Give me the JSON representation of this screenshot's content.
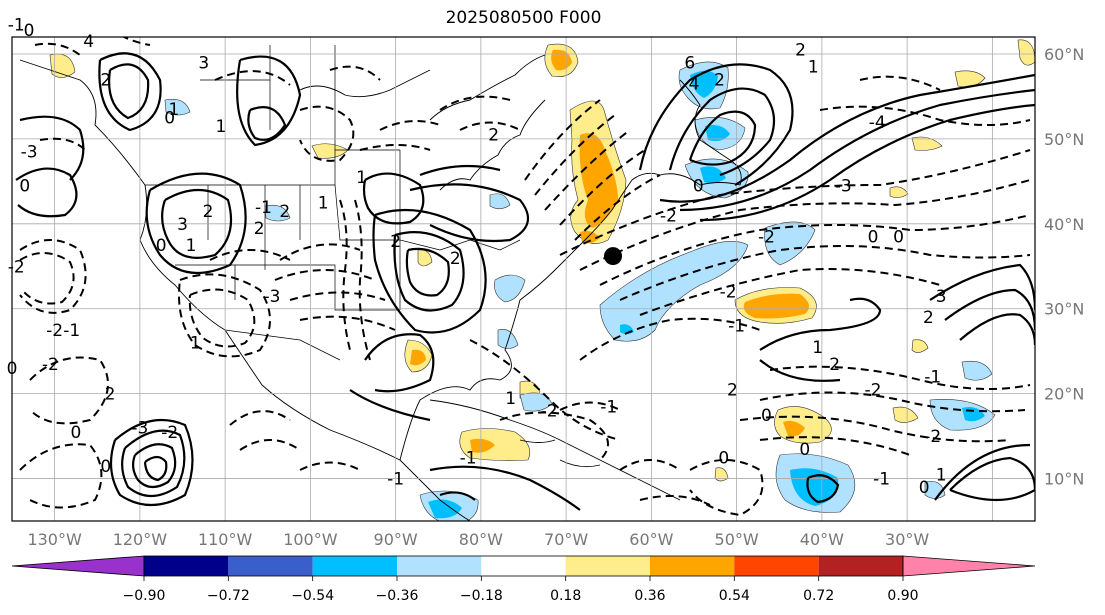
{
  "title": "2025080500 F000",
  "lat_labels": [
    {
      "lat": 60,
      "text": "60°N"
    },
    {
      "lat": 50,
      "text": "50°N"
    },
    {
      "lat": 40,
      "text": "40°N"
    },
    {
      "lat": 30,
      "text": "30°N"
    },
    {
      "lat": 20,
      "text": "20°N"
    },
    {
      "lat": 10,
      "text": "10°N"
    }
  ],
  "lon_labels": [
    {
      "lon": -130,
      "text": "130°W"
    },
    {
      "lon": -120,
      "text": "120°W"
    },
    {
      "lon": -110,
      "text": "110°W"
    },
    {
      "lon": -100,
      "text": "100°W"
    },
    {
      "lon": -90,
      "text": "90°W"
    },
    {
      "lon": -80,
      "text": "80°W"
    },
    {
      "lon": -70,
      "text": "70°W"
    },
    {
      "lon": -60,
      "text": "60°W"
    },
    {
      "lon": -50,
      "text": "50°W"
    },
    {
      "lon": -40,
      "text": "40°W"
    },
    {
      "lon": -30,
      "text": "30°W"
    }
  ],
  "colorbar": {
    "colors": [
      "#9932CC",
      "#00008B",
      "#3A5FCD",
      "#00BFFF",
      "#B0E2FF",
      "#FFFFFF",
      "#FFEC8B",
      "#FFA500",
      "#FF4500",
      "#B22222",
      "#FF82AB"
    ],
    "ticks": [
      "−0.90",
      "−0.72",
      "−0.54",
      "−0.36",
      "−0.18",
      "0.18",
      "0.36",
      "0.54",
      "0.72",
      "0.90"
    ]
  },
  "marker": {
    "lat": 36.2,
    "lon": -64.5,
    "color": "#000000"
  },
  "contour_labels": [
    {
      "text": "-1",
      "lat": 63.5,
      "lon": -134.5
    },
    {
      "text": "0",
      "lat": 62.8,
      "lon": -133
    },
    {
      "text": "4",
      "lat": 61.5,
      "lon": -126
    },
    {
      "text": "3",
      "lat": 59,
      "lon": -112.5
    },
    {
      "text": "2",
      "lat": 57,
      "lon": -124
    },
    {
      "text": "1",
      "lat": 53.5,
      "lon": -116
    },
    {
      "text": "0",
      "lat": 52.5,
      "lon": -116.5
    },
    {
      "text": "-3",
      "lat": 48.5,
      "lon": -133
    },
    {
      "text": "0",
      "lat": 44.5,
      "lon": -133.5
    },
    {
      "text": "1",
      "lat": 51.5,
      "lon": -110.5
    },
    {
      "text": "2",
      "lat": 41.5,
      "lon": -112
    },
    {
      "text": "2",
      "lat": 41.5,
      "lon": -103
    },
    {
      "text": "3",
      "lat": 40,
      "lon": -115
    },
    {
      "text": "1",
      "lat": 37.5,
      "lon": -114
    },
    {
      "text": "0",
      "lat": 37.5,
      "lon": -117.5
    },
    {
      "text": "1",
      "lat": 42.5,
      "lon": -98.5
    },
    {
      "text": "2",
      "lat": 39.5,
      "lon": -106
    },
    {
      "text": "-1",
      "lat": 42,
      "lon": -105.5
    },
    {
      "text": "-2",
      "lat": 35,
      "lon": -134.5
    },
    {
      "text": "-3",
      "lat": 31.5,
      "lon": -104.5
    },
    {
      "text": "2",
      "lat": 38,
      "lon": -90
    },
    {
      "text": "2",
      "lat": 36,
      "lon": -83
    },
    {
      "text": "2",
      "lat": 50.5,
      "lon": -78.5
    },
    {
      "text": "1",
      "lat": 45.5,
      "lon": -94
    },
    {
      "text": "-2",
      "lat": 27.5,
      "lon": -130
    },
    {
      "text": "-1",
      "lat": 27.5,
      "lon": -128
    },
    {
      "text": "-2",
      "lat": 23.5,
      "lon": -130.5
    },
    {
      "text": "0",
      "lat": 23,
      "lon": -135
    },
    {
      "text": "1",
      "lat": 26,
      "lon": -113.5
    },
    {
      "text": "1",
      "lat": 19.5,
      "lon": -76.5
    },
    {
      "text": "-2",
      "lat": 18,
      "lon": -72
    },
    {
      "text": "-1",
      "lat": 18.5,
      "lon": -65
    },
    {
      "text": "2",
      "lat": 20,
      "lon": -123.5
    },
    {
      "text": "-3",
      "lat": 16,
      "lon": -120
    },
    {
      "text": "-2",
      "lat": 15.5,
      "lon": -116.5
    },
    {
      "text": "0",
      "lat": 15.5,
      "lon": -127.5
    },
    {
      "text": "0",
      "lat": 11.5,
      "lon": -124
    },
    {
      "text": "-1",
      "lat": 12.5,
      "lon": -81.5
    },
    {
      "text": "-1",
      "lat": 10,
      "lon": -90
    },
    {
      "text": "6",
      "lat": 59,
      "lon": -55.5
    },
    {
      "text": "4",
      "lat": 56.5,
      "lon": -55
    },
    {
      "text": "2",
      "lat": 57,
      "lon": -52
    },
    {
      "text": "0",
      "lat": 44.5,
      "lon": -54.5
    },
    {
      "text": "-2",
      "lat": 38.5,
      "lon": -46.5
    },
    {
      "text": "-3",
      "lat": 44.5,
      "lon": -37.5
    },
    {
      "text": "-2",
      "lat": 32,
      "lon": -51
    },
    {
      "text": "-1",
      "lat": 28,
      "lon": -50
    },
    {
      "text": "1",
      "lat": 25.5,
      "lon": -40.5
    },
    {
      "text": "2",
      "lat": 23.5,
      "lon": -38.5
    },
    {
      "text": "-2",
      "lat": 20.5,
      "lon": -34
    },
    {
      "text": "2",
      "lat": 20.5,
      "lon": -50.5
    },
    {
      "text": "0",
      "lat": 17.5,
      "lon": -46.5
    },
    {
      "text": "0",
      "lat": 12.5,
      "lon": -51.5
    },
    {
      "text": "0",
      "lat": 13.5,
      "lon": -42
    },
    {
      "text": "-1",
      "lat": 10,
      "lon": -33
    },
    {
      "text": "1",
      "lat": 10.5,
      "lon": -26
    },
    {
      "text": "0",
      "lat": 9,
      "lon": -28
    },
    {
      "text": "-2",
      "lat": 15,
      "lon": -27
    },
    {
      "text": "-1",
      "lat": 22,
      "lon": -27
    },
    {
      "text": "0",
      "lat": 38.5,
      "lon": -34
    },
    {
      "text": "0",
      "lat": 38.5,
      "lon": -31
    },
    {
      "text": "2",
      "lat": 29,
      "lon": -27.5
    },
    {
      "text": "3",
      "lat": 31.5,
      "lon": -26
    },
    {
      "text": "2",
      "lat": 60.5,
      "lon": -42.5
    },
    {
      "text": "1",
      "lat": 58.5,
      "lon": -41
    },
    {
      "text": "-4",
      "lat": 52,
      "lon": -33.5
    },
    {
      "text": "-2",
      "lat": 41,
      "lon": -58
    }
  ]
}
